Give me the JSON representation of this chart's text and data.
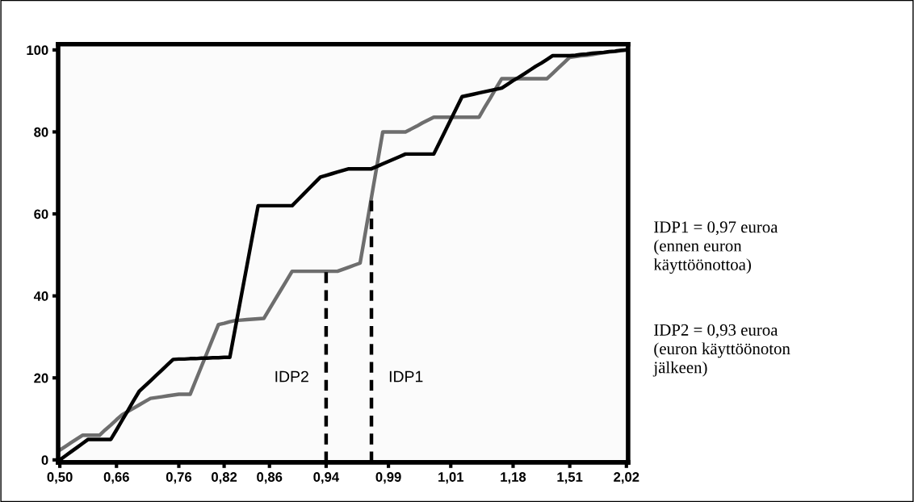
{
  "chart_data": {
    "type": "line",
    "ylim": [
      -0.6,
      101.4
    ],
    "categories": [
      "0,50",
      null,
      null,
      null,
      null,
      null,
      null,
      null,
      null,
      null,
      "0,66",
      null,
      null,
      null,
      null,
      null,
      null,
      null,
      null,
      null,
      null,
      "0,76",
      null,
      null,
      null,
      null,
      null,
      null,
      null,
      "0,82",
      null,
      null,
      null,
      null,
      null,
      null,
      null,
      "0,86",
      null,
      null,
      null,
      null,
      null,
      null,
      null,
      null,
      null,
      "0,94",
      null,
      null,
      null,
      null,
      null,
      null,
      null,
      null,
      null,
      null,
      "0,99",
      null,
      null,
      null,
      null,
      null,
      null,
      null,
      null,
      null,
      null,
      "1,01",
      null,
      null,
      null,
      null,
      null,
      null,
      null,
      null,
      null,
      null,
      "1,18",
      null,
      null,
      null,
      null,
      null,
      null,
      null,
      null,
      null,
      "1,51",
      null,
      null,
      null,
      null,
      null,
      null,
      null,
      null,
      null,
      "2,02"
    ],
    "yticks": [
      0,
      20,
      40,
      60,
      80,
      100
    ],
    "grid": false,
    "marker": "none",
    "series": [
      {
        "color": "#6e6e6e",
        "line_style": "solid",
        "values": [
          2.4,
          3.3,
          4.2,
          5.1,
          6,
          6,
          6,
          6,
          7.3,
          8.5,
          9.8,
          11,
          11.8,
          12.6,
          13.4,
          14.2,
          15,
          15.2,
          15.4,
          15.6,
          15.8,
          16,
          16,
          16,
          19.4,
          22.8,
          26.2,
          29.6,
          33,
          33.3,
          33.7,
          34,
          34.1,
          34.2,
          34.3,
          34.4,
          34.5,
          36.8,
          39.1,
          41.4,
          43.7,
          46,
          46,
          46,
          46,
          46,
          46,
          46,
          46,
          46,
          46.5,
          47,
          47.5,
          48,
          56,
          64,
          72,
          80,
          80,
          80,
          80,
          80,
          80.7,
          81.4,
          82.2,
          82.9,
          83.6,
          83.6,
          83.6,
          83.6,
          83.6,
          83.6,
          83.6,
          83.6,
          83.6,
          86,
          88.3,
          90.7,
          93,
          93,
          93,
          93,
          93,
          93,
          93,
          93,
          93,
          94.3,
          95.6,
          96.9,
          98.2,
          98.4,
          98.6,
          98.7,
          98.9,
          99.1,
          99.3,
          99.5,
          99.6,
          99.8,
          100
        ]
      },
      {
        "color": "#000000",
        "line_style": "solid",
        "values": [
          0,
          1,
          2,
          3,
          4,
          5,
          5,
          5,
          5,
          5,
          7.3,
          9.7,
          12,
          14.4,
          16.7,
          18,
          19.3,
          20.6,
          21.9,
          23.2,
          24.5,
          24.6,
          24.6,
          24.7,
          24.7,
          24.8,
          24.8,
          24.9,
          24.9,
          25,
          25,
          32.4,
          39.8,
          47.2,
          54.6,
          62,
          62,
          62,
          62,
          62,
          62,
          62,
          63.4,
          64.8,
          66.2,
          67.6,
          69,
          69.4,
          69.8,
          70.2,
          70.6,
          71,
          71,
          71,
          71,
          71,
          71.6,
          72.2,
          72.8,
          73.4,
          74,
          74.6,
          74.6,
          74.6,
          74.6,
          74.6,
          74.6,
          77.4,
          80.2,
          83,
          85.8,
          88.6,
          88.9,
          89.2,
          89.5,
          89.8,
          90.1,
          90.4,
          90.7,
          91.6,
          92.5,
          93.3,
          94.2,
          95.1,
          96,
          96.8,
          97.7,
          98.6,
          98.6,
          98.6,
          98.6,
          98.7,
          98.9,
          99,
          99.2,
          99.3,
          99.4,
          99.6,
          99.7,
          99.9,
          100
        ]
      }
    ],
    "ref_lines": [
      {
        "axis": "x",
        "value": "0,94",
        "label": "IDP2",
        "color": "#000000",
        "line_style": "dashed"
      }
    ],
    "annotations": [
      "IDP1",
      "IDP1 = 0,97 euroa\n(ennen euron\nkäyttöönottoa)",
      "IDP2 = 0,93 euroa\n(euron käyttöönoton\njälkeen)"
    ]
  }
}
